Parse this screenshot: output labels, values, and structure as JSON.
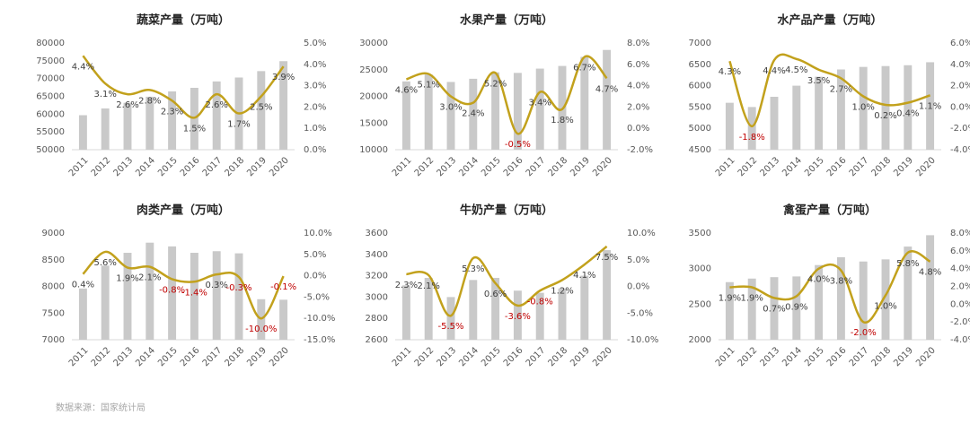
{
  "chart_data": [
    {
      "type": "bar-line",
      "title": "蔬菜产量（万吨）",
      "categories": [
        "2011",
        "2012",
        "2013",
        "2014",
        "2015",
        "2016",
        "2017",
        "2018",
        "2019",
        "2020"
      ],
      "ylim": [
        50000,
        80000
      ],
      "yticks": [
        50000,
        55000,
        60000,
        65000,
        70000,
        75000,
        80000
      ],
      "y2lim": [
        0,
        5
      ],
      "y2ticks": [
        {
          "value": 0,
          "label": "0.0%"
        },
        {
          "value": 1,
          "label": "1.0%"
        },
        {
          "value": 2,
          "label": "2.0%"
        },
        {
          "value": 3,
          "label": "3.0%"
        },
        {
          "value": 4,
          "label": "4.0%"
        },
        {
          "value": 5,
          "label": "5.0%"
        }
      ],
      "series": [
        {
          "type": "bar",
          "color": "#c9c9c9",
          "values": [
            59700,
            61600,
            63200,
            64900,
            66400,
            67400,
            69200,
            70300,
            72100,
            74900
          ]
        },
        {
          "type": "line",
          "axis": "y2",
          "color": "#c2a11c",
          "label_color": "#404040",
          "negative_label_color": "#c00000",
          "values": [
            4.4,
            3.1,
            2.6,
            2.8,
            2.3,
            1.5,
            2.6,
            1.7,
            2.5,
            3.9
          ],
          "value_labels": [
            "4.4%",
            "3.1%",
            "2.6%",
            "2.8%",
            "2.3%",
            "1.5%",
            "2.6%",
            "1.7%",
            "2.5%",
            "3.9%"
          ]
        }
      ]
    },
    {
      "type": "bar-line",
      "title": "水果产量（万吨）",
      "categories": [
        "2011",
        "2012",
        "2013",
        "2014",
        "2015",
        "2016",
        "2017",
        "2018",
        "2019",
        "2020"
      ],
      "ylim": [
        10000,
        30000
      ],
      "yticks": [
        10000,
        15000,
        20000,
        25000,
        30000
      ],
      "y2lim": [
        -2,
        8
      ],
      "y2ticks": [
        {
          "value": -2,
          "label": "-2.0%"
        },
        {
          "value": 0,
          "label": "0.0%"
        },
        {
          "value": 2,
          "label": "2.0%"
        },
        {
          "value": 4,
          "label": "4.0%"
        },
        {
          "value": 6,
          "label": "6.0%"
        },
        {
          "value": 8,
          "label": "8.0%"
        }
      ],
      "series": [
        {
          "type": "bar",
          "color": "#c9c9c9",
          "values": [
            22800,
            24100,
            22700,
            23300,
            24500,
            24400,
            25200,
            25700,
            27400,
            28700
          ]
        },
        {
          "type": "line",
          "axis": "y2",
          "color": "#c2a11c",
          "label_color": "#404040",
          "negative_label_color": "#c00000",
          "values": [
            4.6,
            5.1,
            3.0,
            2.4,
            5.2,
            -0.5,
            3.4,
            1.8,
            6.7,
            4.7
          ],
          "value_labels": [
            "4.6%",
            "5.1%",
            "3.0%",
            "2.4%",
            "5.2%",
            "-0.5%",
            "3.4%",
            "1.8%",
            "6.7%",
            "4.7%"
          ]
        }
      ]
    },
    {
      "type": "bar-line",
      "title": "水产品产量（万吨）",
      "categories": [
        "2011",
        "2012",
        "2013",
        "2014",
        "2015",
        "2016",
        "2017",
        "2018",
        "2019",
        "2020"
      ],
      "ylim": [
        4500,
        7000
      ],
      "yticks": [
        4500,
        5000,
        5500,
        6000,
        6500,
        7000
      ],
      "y2lim": [
        -4,
        6
      ],
      "y2ticks": [
        {
          "value": -4,
          "label": "-4.0%"
        },
        {
          "value": -2,
          "label": "-2.0%"
        },
        {
          "value": 0,
          "label": "0.0%"
        },
        {
          "value": 2,
          "label": "2.0%"
        },
        {
          "value": 4,
          "label": "4.0%"
        },
        {
          "value": 6,
          "label": "6.0%"
        }
      ],
      "series": [
        {
          "type": "bar",
          "color": "#c9c9c9",
          "values": [
            5600,
            5500,
            5740,
            6000,
            6210,
            6380,
            6440,
            6460,
            6480,
            6550
          ]
        },
        {
          "type": "line",
          "axis": "y2",
          "color": "#c2a11c",
          "label_color": "#404040",
          "negative_label_color": "#c00000",
          "values": [
            4.3,
            -1.8,
            4.4,
            4.5,
            3.5,
            2.7,
            1.0,
            0.2,
            0.4,
            1.1
          ],
          "value_labels": [
            "4.3%",
            "-1.8%",
            "4.4%",
            "4.5%",
            "3.5%",
            "2.7%",
            "1.0%",
            "0.2%",
            "0.4%",
            "1.1%"
          ]
        }
      ]
    },
    {
      "type": "bar-line",
      "title": "肉类产量（万吨）",
      "categories": [
        "2011",
        "2012",
        "2013",
        "2014",
        "2015",
        "2016",
        "2017",
        "2018",
        "2019",
        "2020"
      ],
      "ylim": [
        7000,
        9000
      ],
      "yticks": [
        7000,
        7500,
        8000,
        8500,
        9000
      ],
      "y2lim": [
        -15,
        10
      ],
      "y2ticks": [
        {
          "value": -15,
          "label": "-15.0%"
        },
        {
          "value": -10,
          "label": "-10.0%"
        },
        {
          "value": -5,
          "label": "-5.0%"
        },
        {
          "value": 0,
          "label": "0.0%"
        },
        {
          "value": 5,
          "label": "5.0%"
        },
        {
          "value": 10,
          "label": "10.0%"
        }
      ],
      "series": [
        {
          "type": "bar",
          "color": "#c9c9c9",
          "values": [
            7960,
            8390,
            8630,
            8820,
            8750,
            8630,
            8660,
            8620,
            7760,
            7750
          ]
        },
        {
          "type": "line",
          "axis": "y2",
          "color": "#c2a11c",
          "label_color": "#404040",
          "negative_label_color": "#c00000",
          "values": [
            0.4,
            5.6,
            1.9,
            2.1,
            -0.8,
            -1.4,
            0.3,
            -0.3,
            -10.0,
            -0.1
          ],
          "value_labels": [
            "0.4%",
            "5.6%",
            "1.9%",
            "2.1%",
            "-0.8%",
            "-1.4%",
            "0.3%",
            "-0.3%",
            "-10.0%",
            "-0.1%"
          ]
        }
      ]
    },
    {
      "type": "bar-line",
      "title": "牛奶产量（万吨）",
      "categories": [
        "2011",
        "2012",
        "2013",
        "2014",
        "2015",
        "2016",
        "2017",
        "2018",
        "2019",
        "2020"
      ],
      "ylim": [
        2600,
        3600
      ],
      "yticks": [
        2600,
        2800,
        3000,
        3200,
        3400,
        3600
      ],
      "y2lim": [
        -10,
        10
      ],
      "y2ticks": [
        {
          "value": -10,
          "label": "-10.0%"
        },
        {
          "value": -5,
          "label": "-5.0%"
        },
        {
          "value": 0,
          "label": "0.0%"
        },
        {
          "value": 5,
          "label": "5.0%"
        },
        {
          "value": 10,
          "label": "10.0%"
        }
      ],
      "series": [
        {
          "type": "bar",
          "color": "#c9c9c9",
          "values": [
            3110,
            3180,
            3000,
            3160,
            3180,
            3060,
            3040,
            3080,
            3200,
            3440
          ]
        },
        {
          "type": "line",
          "axis": "y2",
          "color": "#c2a11c",
          "label_color": "#404040",
          "negative_label_color": "#c00000",
          "values": [
            2.3,
            2.1,
            -5.5,
            5.3,
            0.6,
            -3.6,
            -0.8,
            1.2,
            4.1,
            7.5
          ],
          "value_labels": [
            "2.3%",
            "2.1%",
            "-5.5%",
            "5.3%",
            "0.6%",
            "-3.6%",
            "-0.8%",
            "1.2%",
            "4.1%",
            "7.5%"
          ]
        }
      ]
    },
    {
      "type": "bar-line",
      "title": "禽蛋产量（万吨）",
      "categories": [
        "2011",
        "2012",
        "2013",
        "2014",
        "2015",
        "2016",
        "2017",
        "2018",
        "2019",
        "2020"
      ],
      "ylim": [
        2000,
        3500
      ],
      "yticks": [
        2000,
        2500,
        3000,
        3500
      ],
      "y2lim": [
        -4,
        8
      ],
      "y2ticks": [
        {
          "value": -4,
          "label": "-4.0%"
        },
        {
          "value": -2,
          "label": "-2.0%"
        },
        {
          "value": 0,
          "label": "0.0%"
        },
        {
          "value": 2,
          "label": "2.0%"
        },
        {
          "value": 4,
          "label": "4.0%"
        },
        {
          "value": 6,
          "label": "6.0%"
        },
        {
          "value": 8,
          "label": "8.0%"
        }
      ],
      "series": [
        {
          "type": "bar",
          "color": "#c9c9c9",
          "values": [
            2810,
            2860,
            2880,
            2890,
            3050,
            3160,
            3100,
            3130,
            3310,
            3470
          ]
        },
        {
          "type": "line",
          "axis": "y2",
          "color": "#c2a11c",
          "label_color": "#404040",
          "negative_label_color": "#c00000",
          "values": [
            1.9,
            1.9,
            0.7,
            0.9,
            4.0,
            3.8,
            -2.0,
            1.0,
            5.8,
            4.8
          ],
          "value_labels": [
            "1.9%",
            "1.9%",
            "0.7%",
            "0.9%",
            "4.0%",
            "3.8%",
            "-2.0%",
            "1.0%",
            "5.8%",
            "4.8%"
          ]
        }
      ]
    }
  ],
  "source": "数据来源：国家统计局"
}
